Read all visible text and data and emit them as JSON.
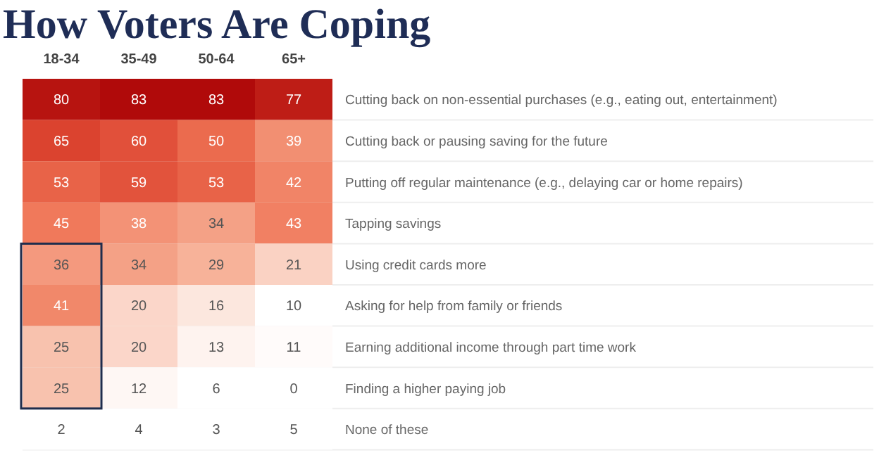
{
  "chart_data": {
    "type": "heatmap",
    "title": "How Voters Are Coping",
    "categories": [
      "18-34",
      "35-49",
      "50-64",
      "65+"
    ],
    "y_categories": [
      "Cutting back on non-essential purchases (e.g., eating out, entertainment)",
      "Cutting back or pausing saving for the future",
      "Putting off regular maintenance (e.g., delaying car or home repairs)",
      "Tapping savings",
      "Using credit cards more",
      "Asking for help from family or friends",
      "Earning additional income through part time work",
      "Finding a higher paying job",
      "None of these"
    ],
    "cells": [
      [
        80,
        83,
        83,
        77
      ],
      [
        65,
        60,
        50,
        39
      ],
      [
        53,
        59,
        53,
        42
      ],
      [
        45,
        38,
        34,
        43
      ],
      [
        36,
        34,
        29,
        21
      ],
      [
        41,
        20,
        16,
        10
      ],
      [
        25,
        20,
        13,
        11
      ],
      [
        25,
        12,
        6,
        0
      ],
      [
        2,
        4,
        3,
        5
      ]
    ],
    "colors": [
      "#ffffff",
      "#f7b59c",
      "#ef7455",
      "#dc4430",
      "#b00a0a"
    ],
    "data_labels": true
  }
}
